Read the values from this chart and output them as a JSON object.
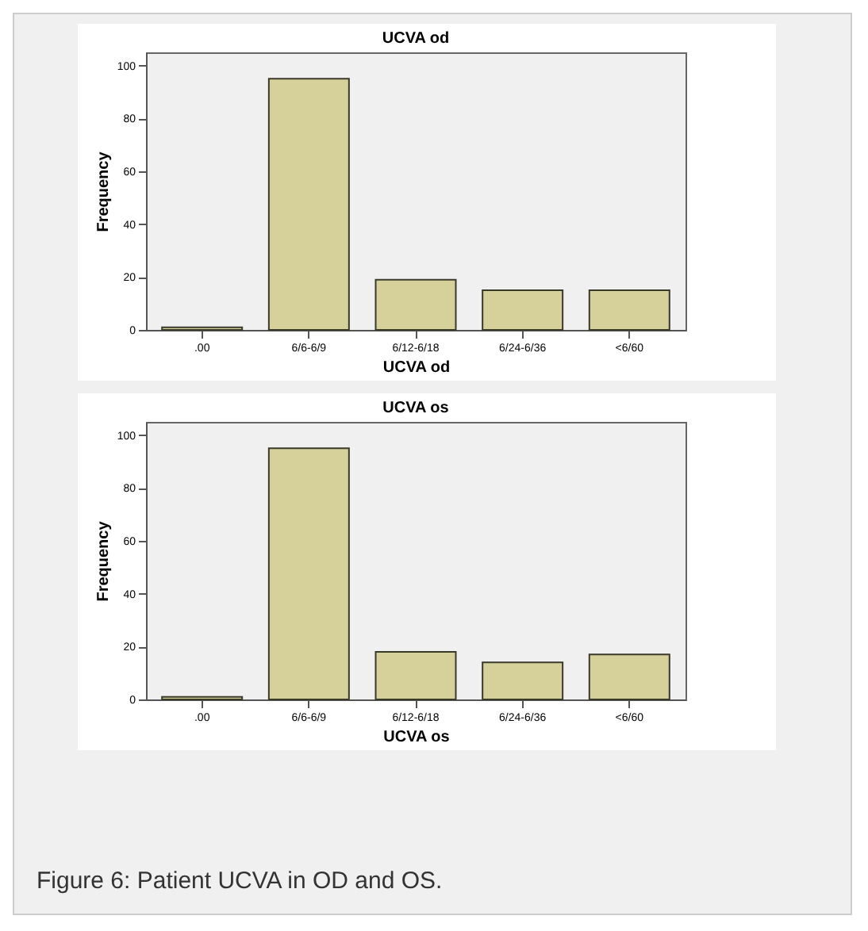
{
  "chart_data": [
    {
      "type": "bar",
      "title": "UCVA od",
      "xlabel": "UCVA od",
      "ylabel": "Frequency",
      "categories": [
        ".00",
        "6/6-6/9",
        "6/12-6/18",
        "6/24-6/36",
        "<6/60"
      ],
      "values": [
        1,
        95,
        19,
        15,
        15
      ],
      "color": "#d6d19a",
      "ylim": [
        0,
        105
      ],
      "yticks": [
        0,
        20,
        40,
        60,
        80,
        100
      ],
      "grid": false
    },
    {
      "type": "bar",
      "title": "UCVA os",
      "xlabel": "UCVA os",
      "ylabel": "Frequency",
      "categories": [
        ".00",
        "6/6-6/9",
        "6/12-6/18",
        "6/24-6/36",
        "<6/60"
      ],
      "values": [
        1,
        95,
        18,
        14,
        17
      ],
      "color": "#d6d19a",
      "ylim": [
        0,
        105
      ],
      "yticks": [
        0,
        20,
        40,
        60,
        80,
        100
      ],
      "grid": false,
      "annotations": [
        "Figure 6: Patient UCVA in OD and OS."
      ]
    }
  ]
}
